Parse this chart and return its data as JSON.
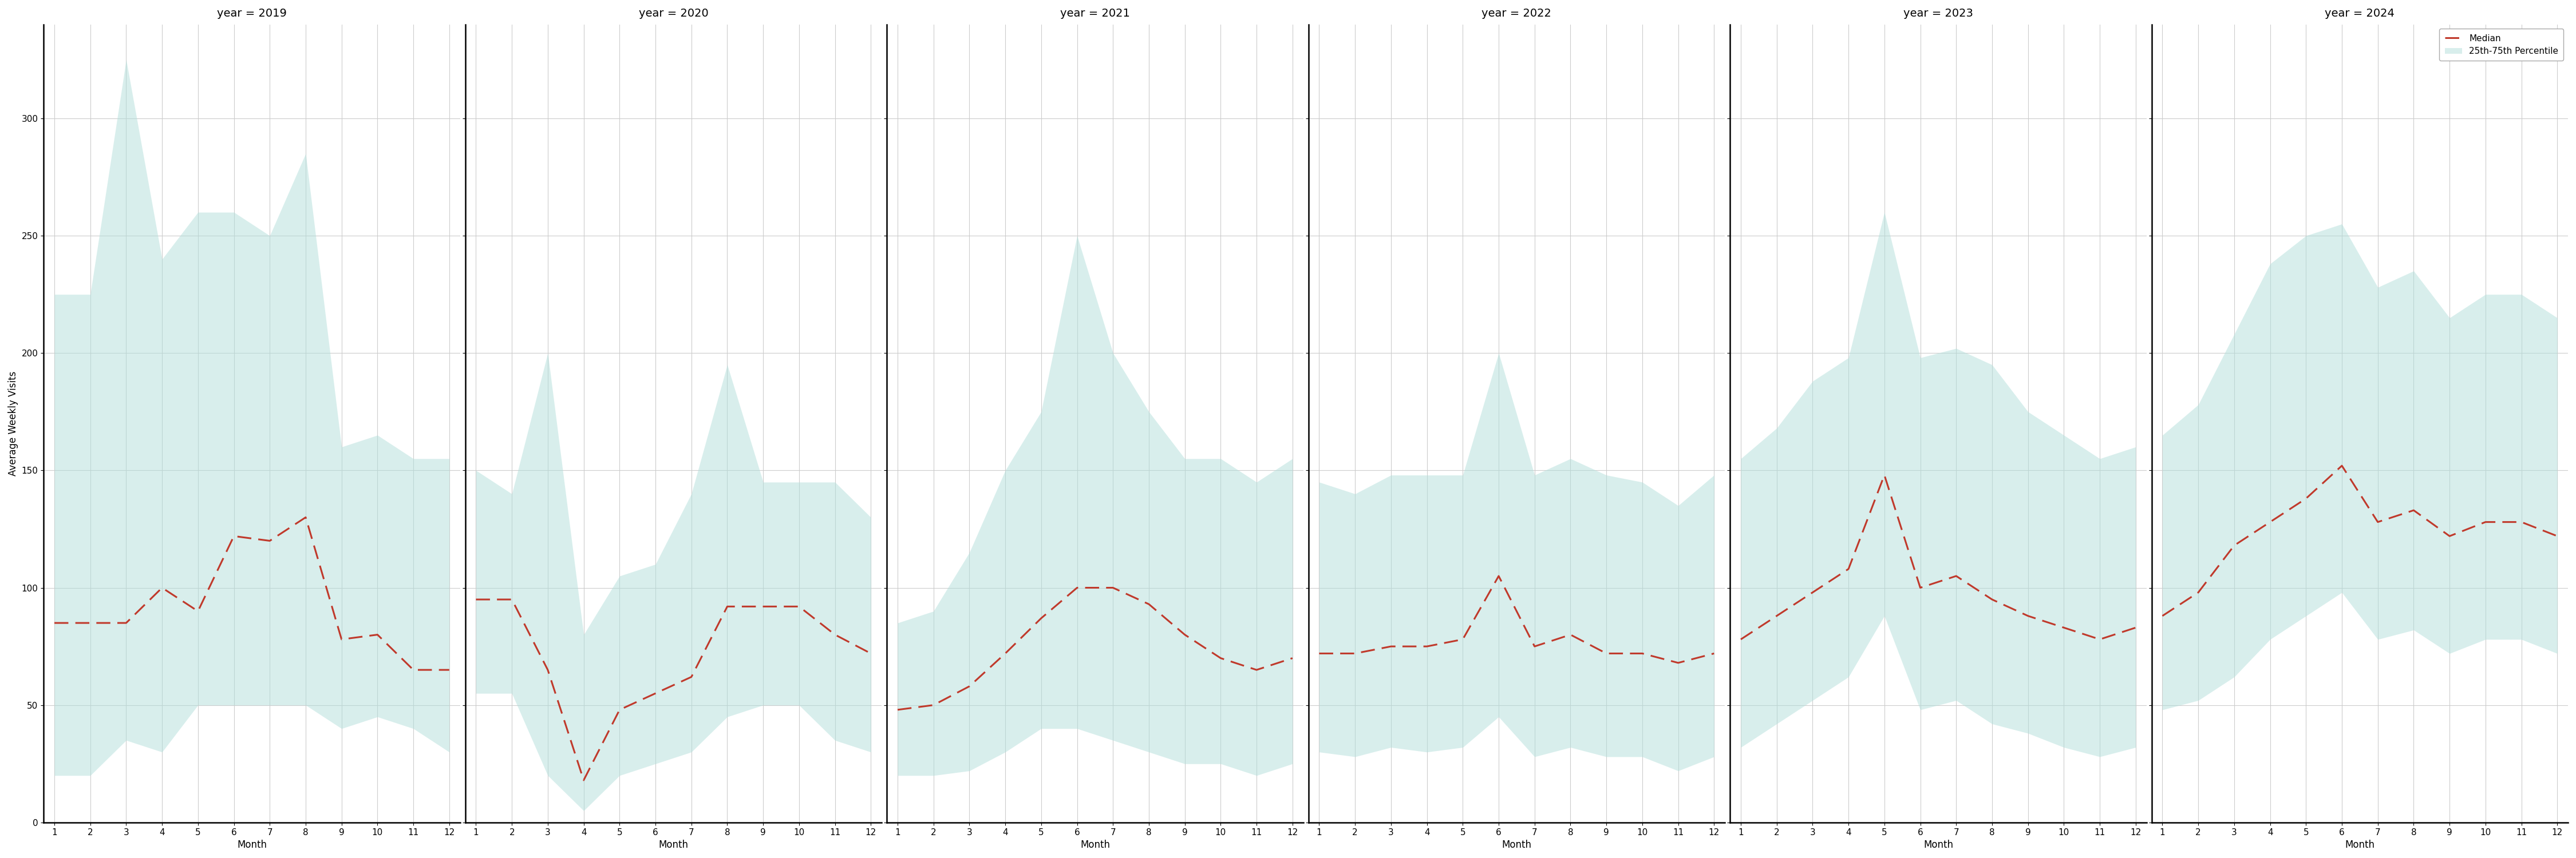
{
  "years": [
    2019,
    2020,
    2021,
    2022,
    2023,
    2024
  ],
  "months": [
    1,
    2,
    3,
    4,
    5,
    6,
    7,
    8,
    9,
    10,
    11,
    12
  ],
  "median": {
    "2019": [
      85,
      85,
      85,
      100,
      90,
      122,
      120,
      130,
      78,
      80,
      65,
      65
    ],
    "2020": [
      95,
      95,
      65,
      18,
      48,
      55,
      62,
      92,
      92,
      92,
      80,
      72
    ],
    "2021": [
      48,
      50,
      58,
      72,
      87,
      100,
      100,
      93,
      80,
      70,
      65,
      70
    ],
    "2022": [
      72,
      72,
      75,
      75,
      78,
      105,
      75,
      80,
      72,
      72,
      68,
      72
    ],
    "2023": [
      78,
      88,
      98,
      108,
      148,
      100,
      105,
      95,
      88,
      83,
      78,
      83
    ],
    "2024": [
      88,
      98,
      118,
      128,
      138,
      152,
      128,
      133,
      122,
      128,
      128,
      122
    ]
  },
  "q25": {
    "2019": [
      20,
      20,
      35,
      30,
      50,
      50,
      50,
      50,
      40,
      45,
      40,
      30
    ],
    "2020": [
      55,
      55,
      20,
      5,
      20,
      25,
      30,
      45,
      50,
      50,
      35,
      30
    ],
    "2021": [
      20,
      20,
      22,
      30,
      40,
      40,
      35,
      30,
      25,
      25,
      20,
      25
    ],
    "2022": [
      30,
      28,
      32,
      30,
      32,
      45,
      28,
      32,
      28,
      28,
      22,
      28
    ],
    "2023": [
      32,
      42,
      52,
      62,
      88,
      48,
      52,
      42,
      38,
      32,
      28,
      32
    ],
    "2024": [
      48,
      52,
      62,
      78,
      88,
      98,
      78,
      82,
      72,
      78,
      78,
      72
    ]
  },
  "q75": {
    "2019": [
      225,
      225,
      325,
      240,
      260,
      260,
      250,
      285,
      160,
      165,
      155,
      155
    ],
    "2020": [
      150,
      140,
      200,
      80,
      105,
      110,
      140,
      195,
      145,
      145,
      145,
      130
    ],
    "2021": [
      85,
      90,
      115,
      150,
      175,
      250,
      200,
      175,
      155,
      155,
      145,
      155
    ],
    "2022": [
      145,
      140,
      148,
      148,
      148,
      200,
      148,
      155,
      148,
      145,
      135,
      148
    ],
    "2023": [
      155,
      168,
      188,
      198,
      260,
      198,
      202,
      195,
      175,
      165,
      155,
      160
    ],
    "2024": [
      165,
      178,
      208,
      238,
      250,
      255,
      228,
      235,
      215,
      225,
      225,
      215
    ]
  },
  "fill_color": "#b2dfdb",
  "fill_alpha": 0.5,
  "line_color": "#c0392b",
  "background_color": "#ffffff",
  "grid_color": "#cccccc",
  "ylabel": "Average Weekly Visits",
  "xlabel": "Month",
  "ylim": [
    0,
    340
  ],
  "yticks": [
    0,
    50,
    100,
    150,
    200,
    250,
    300
  ],
  "title_fontsize": 14,
  "label_fontsize": 12,
  "tick_fontsize": 11,
  "figsize": [
    45.0,
    15.0
  ]
}
